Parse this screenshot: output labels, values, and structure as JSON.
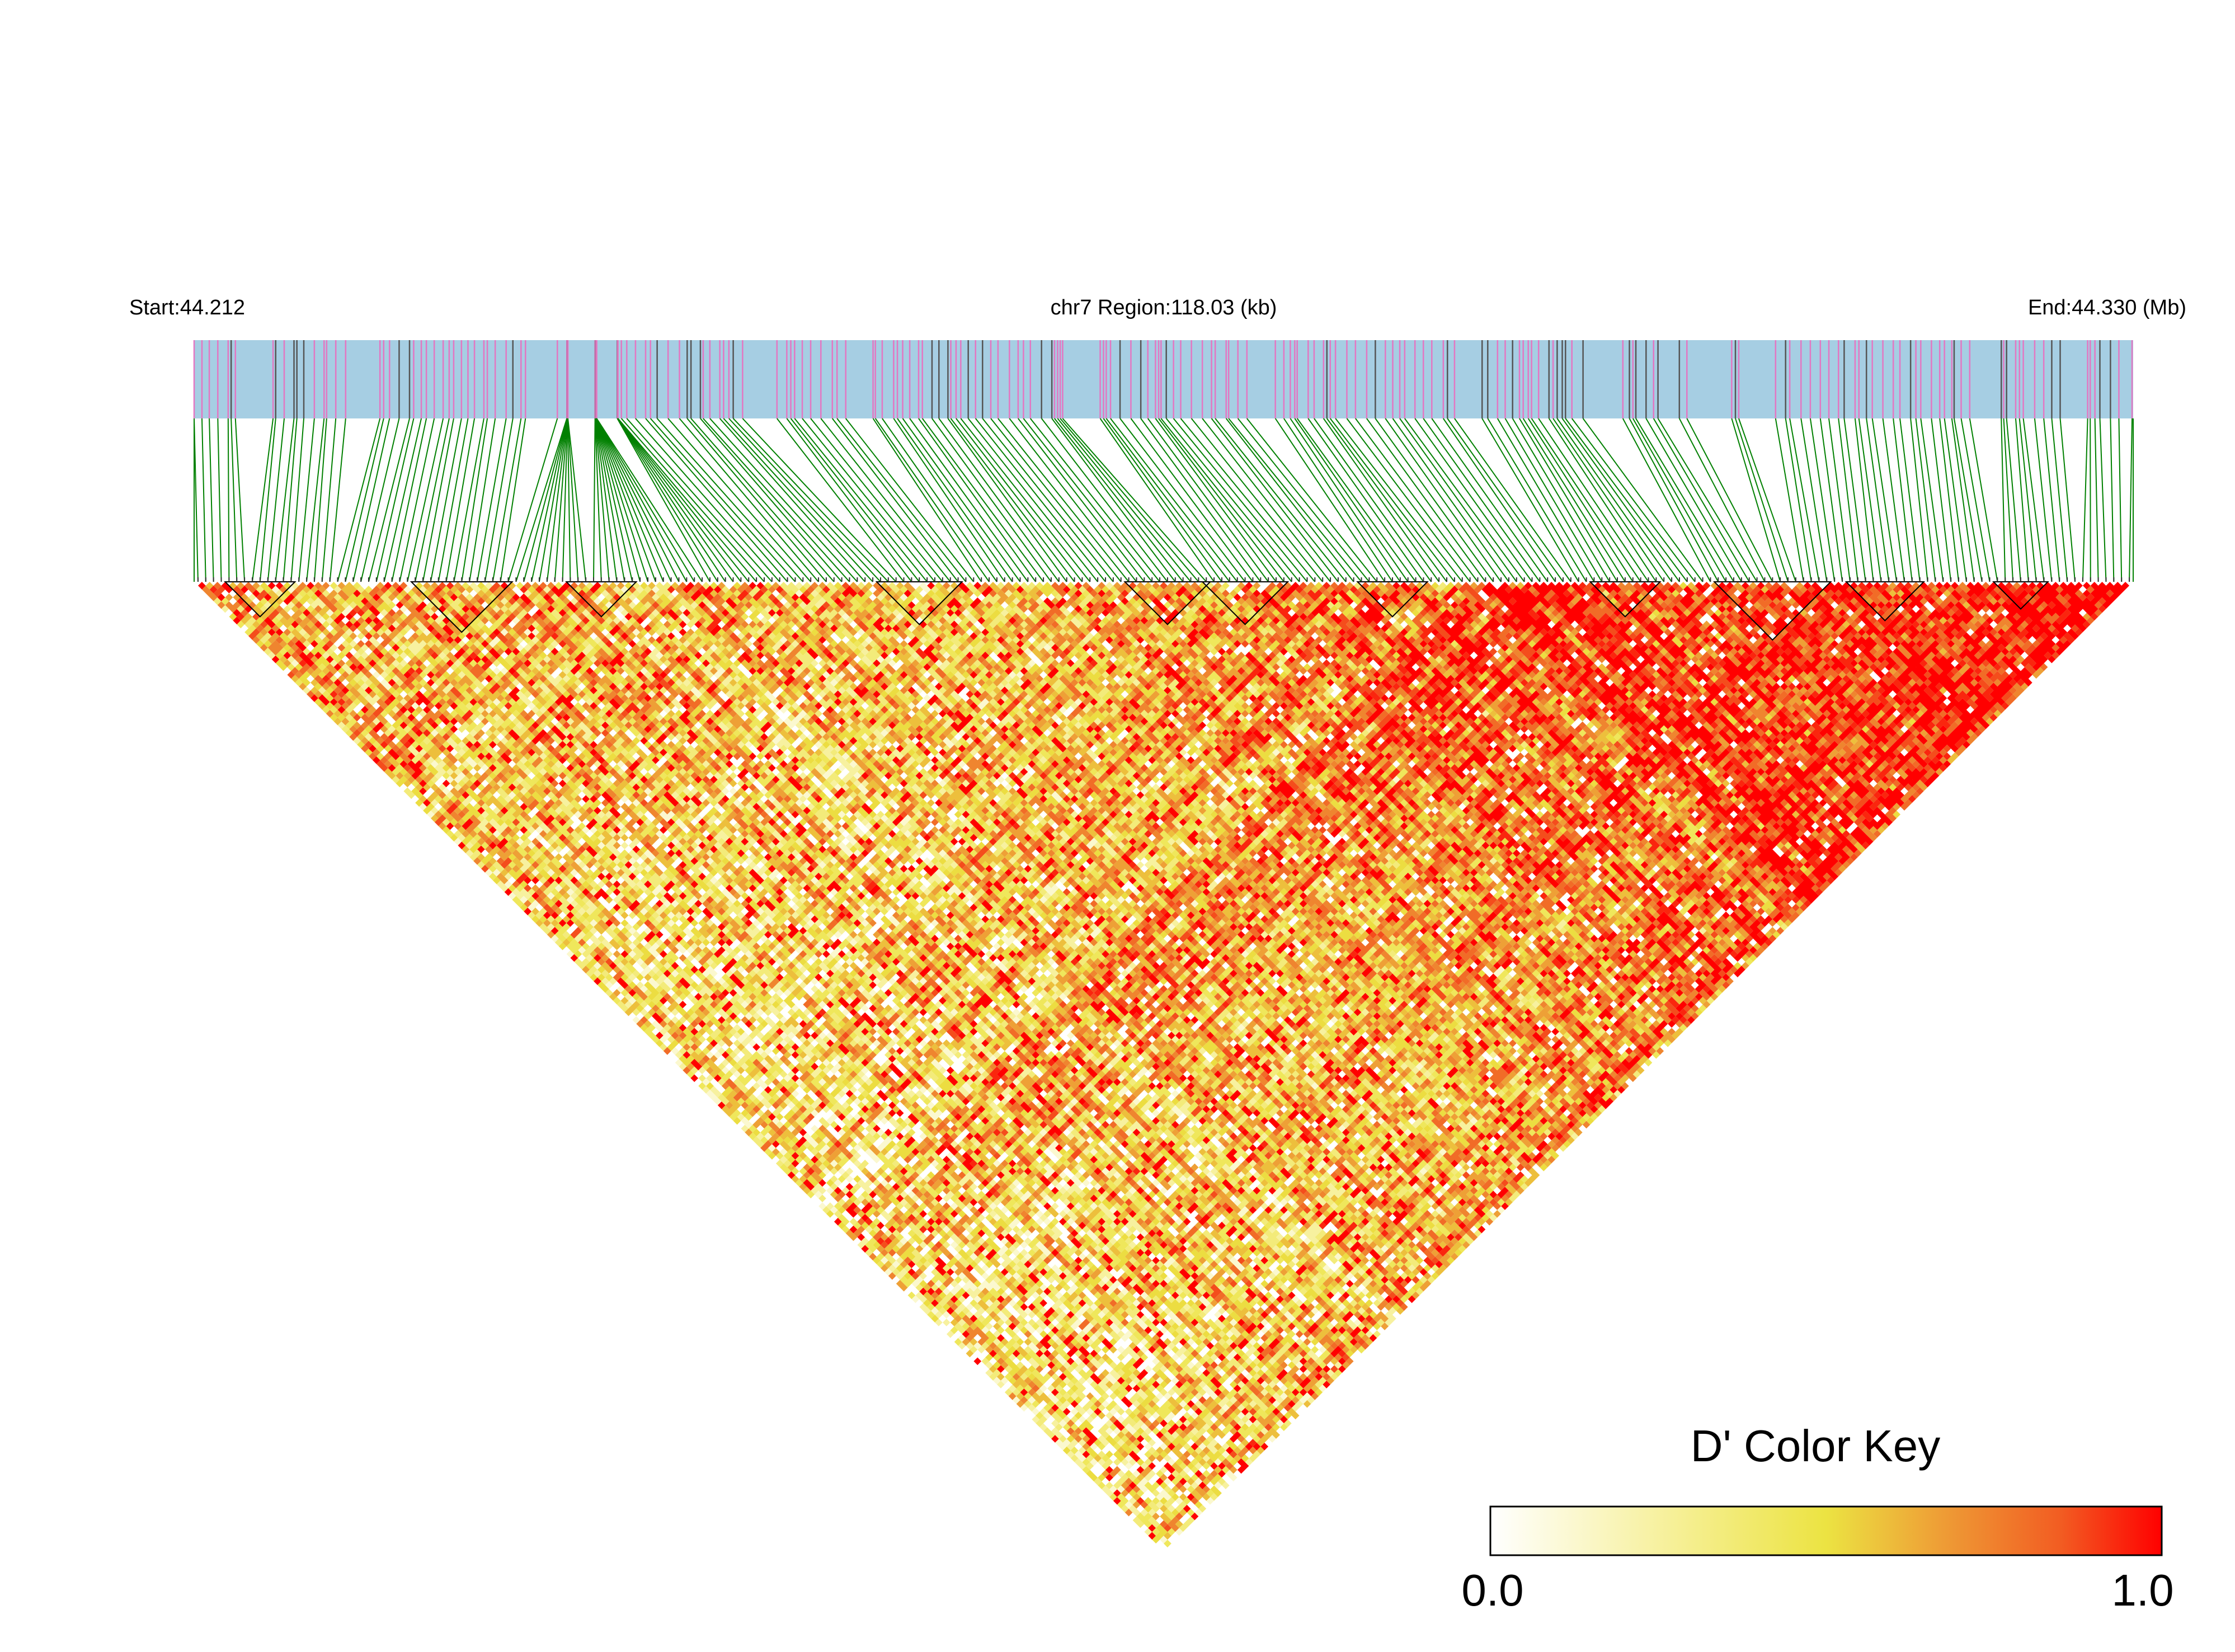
{
  "chart_data": {
    "type": "heatmap",
    "subtype": "linkage-disequilibrium-triangle",
    "header": {
      "start_label": "Start:44.212",
      "region_label": "chr7 Region:118.03 (kb)",
      "end_label": "End:44.330 (Mb)"
    },
    "region": {
      "chromosome": "chr7",
      "start_mb": 44.212,
      "end_mb": 44.33,
      "length_kb": 118.03
    },
    "statistic": "D'",
    "snp_count": 250,
    "snp_track_colors": {
      "background": "#a6cee3",
      "snp_line_a": "#e377c2",
      "snp_line_b": "#555555",
      "connector": "#008000"
    },
    "ld_blocks_snp_index_ranges": [
      [
        4,
        12
      ],
      [
        28,
        40
      ],
      [
        48,
        56
      ],
      [
        88,
        98
      ],
      [
        120,
        130
      ],
      [
        130,
        140
      ],
      [
        150,
        158
      ],
      [
        180,
        188
      ],
      [
        196,
        210
      ],
      [
        213,
        222
      ],
      [
        232,
        238
      ]
    ],
    "color_key": {
      "title": "D' Color Key",
      "min_label": "0.0",
      "max_label": "1.0",
      "min": 0.0,
      "max": 1.0,
      "gradient": [
        "#ffffff",
        "#f5ee8c",
        "#ece342",
        "#ee9a35",
        "#f25c22",
        "#ff0000"
      ]
    }
  }
}
